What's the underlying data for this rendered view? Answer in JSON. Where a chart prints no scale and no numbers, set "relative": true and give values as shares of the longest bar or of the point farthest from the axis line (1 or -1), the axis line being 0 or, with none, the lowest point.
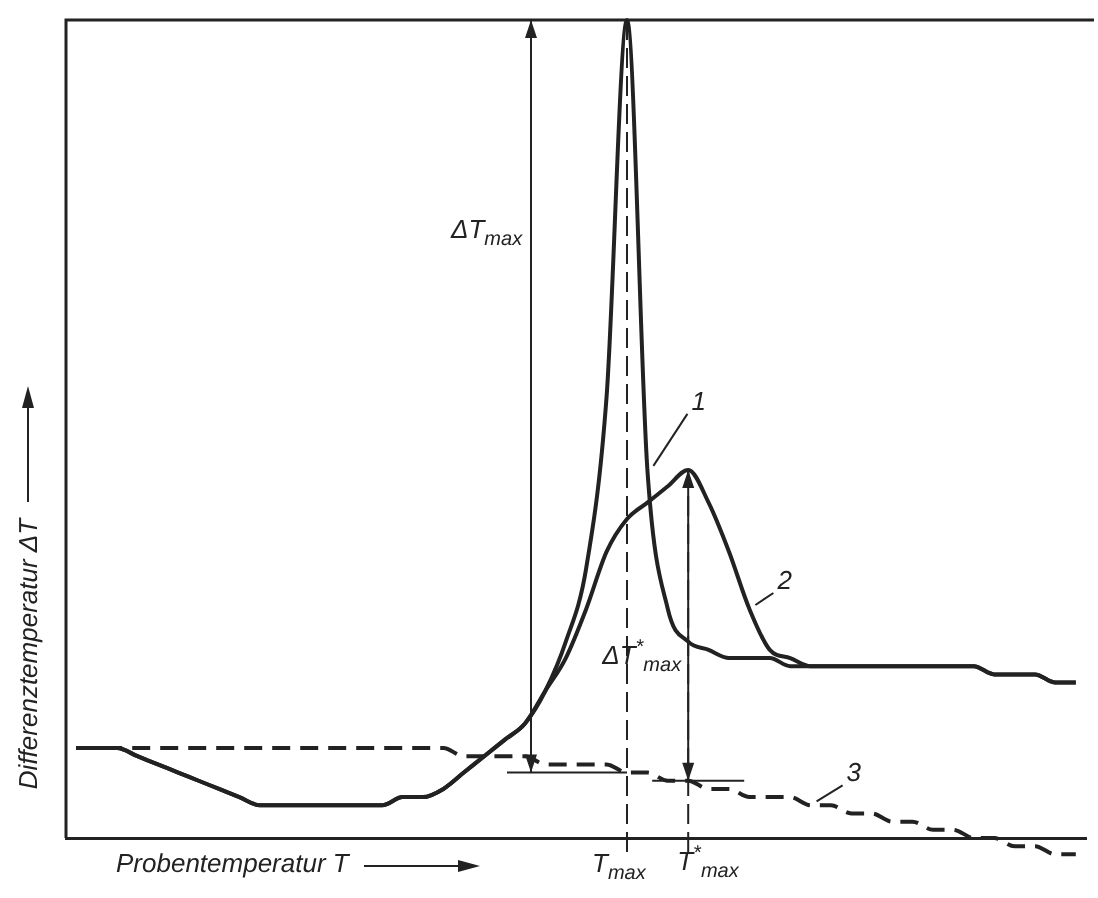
{
  "chart_data": {
    "type": "line",
    "relative": true,
    "xlabel": "Probentemperatur T",
    "ylabel": "Differenztemperatur ΔT",
    "legend": false,
    "grid": false,
    "marker": "none",
    "line_style": "solid",
    "categories": [
      null,
      null,
      null,
      null,
      null,
      null,
      null,
      null,
      null,
      null,
      null,
      null,
      null,
      null,
      null,
      null,
      null,
      null,
      null,
      null,
      null,
      null,
      null,
      null,
      null,
      null,
      null,
      null,
      null,
      null,
      null,
      null,
      null,
      null,
      null,
      null,
      null,
      null,
      null,
      null,
      null,
      null,
      null,
      null,
      null,
      null,
      null,
      null,
      null,
      null
    ],
    "series": [
      {
        "name": "1",
        "color": "#222222",
        "values": [
          0.11,
          0.11,
          0.11,
          0.1,
          0.09,
          0.08,
          0.07,
          0.06,
          0.05,
          0.04,
          0.04,
          0.04,
          0.04,
          0.04,
          0.04,
          0.04,
          0.05,
          0.05,
          0.06,
          0.08,
          0.1,
          0.12,
          0.14,
          0.18,
          0.24,
          0.33,
          0.54,
          1.0,
          0.45,
          0.28,
          0.24,
          0.23,
          0.22,
          0.22,
          0.22,
          0.21,
          0.21,
          0.21,
          0.21,
          0.21,
          0.21,
          0.21,
          0.21,
          0.21,
          0.21,
          0.2,
          0.2,
          0.2,
          0.19,
          0.19
        ]
      },
      {
        "name": "2",
        "color": "#222222",
        "values": [
          0.11,
          0.11,
          0.11,
          0.1,
          0.09,
          0.08,
          0.07,
          0.06,
          0.05,
          0.04,
          0.04,
          0.04,
          0.04,
          0.04,
          0.04,
          0.04,
          0.05,
          0.05,
          0.06,
          0.08,
          0.1,
          0.12,
          0.14,
          0.18,
          0.22,
          0.28,
          0.35,
          0.39,
          0.41,
          0.43,
          0.45,
          0.41,
          0.35,
          0.28,
          0.23,
          0.22,
          0.21,
          0.21,
          0.21,
          0.21,
          0.21,
          0.21,
          0.21,
          0.21,
          0.21,
          0.2,
          0.2,
          0.2,
          0.19,
          0.19
        ]
      },
      {
        "name": "3",
        "color": "#222222",
        "line_style": "dashed",
        "values": [
          0.11,
          0.11,
          0.11,
          0.11,
          0.11,
          0.11,
          0.11,
          0.11,
          0.11,
          0.11,
          0.11,
          0.11,
          0.11,
          0.11,
          0.11,
          0.11,
          0.11,
          0.11,
          0.11,
          0.1,
          0.1,
          0.1,
          0.1,
          0.09,
          0.09,
          0.09,
          0.09,
          0.08,
          0.08,
          0.07,
          0.07,
          0.06,
          0.06,
          0.05,
          0.05,
          0.05,
          0.04,
          0.04,
          0.03,
          0.03,
          0.02,
          0.02,
          0.01,
          0.01,
          0.0,
          -0.0,
          -0.01,
          -0.01,
          -0.02,
          -0.02
        ]
      }
    ],
    "annotations": [
      "ΔT$_{max}$",
      "ΔT$^{*}$$_{max}$",
      "T$_{max}$",
      "T$^{*}$$_{max}$"
    ]
  }
}
